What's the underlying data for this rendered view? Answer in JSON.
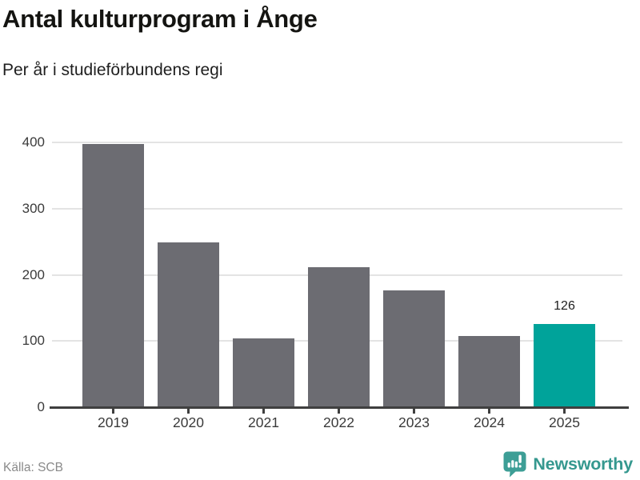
{
  "header": {
    "title": "Antal kulturprogram i Ånge",
    "subtitle": "Per år i studieförbundens regi"
  },
  "chart_data": {
    "type": "bar",
    "title": "Antal kulturprogram i Ånge",
    "subtitle": "Per år i studieförbundens regi",
    "categories": [
      "2019",
      "2020",
      "2021",
      "2022",
      "2023",
      "2024",
      "2025"
    ],
    "values": [
      398,
      249,
      104,
      212,
      177,
      108,
      126
    ],
    "xlabel": "",
    "ylabel": "",
    "ylim": [
      0,
      400
    ],
    "yticks": [
      0,
      100,
      200,
      300,
      400
    ],
    "grid": true,
    "legend_position": "none",
    "bar_color": "#6c6c72",
    "highlight": {
      "category": "2025",
      "color": "#00a39a",
      "data_label": "126"
    }
  },
  "footer": {
    "source": "Källa: SCB",
    "brand": "Newsworthy"
  },
  "colors": {
    "accent_teal": "#00a39a",
    "bar_gray": "#6c6c72",
    "grid_line": "#e4e4e4",
    "axis_line": "#3f3f3f",
    "title_text": "#141411",
    "tick_text": "#3b3b3b",
    "source_text": "#8a8a8a",
    "logo_teal": "#3d9e96",
    "brand_text": "#35988f"
  }
}
